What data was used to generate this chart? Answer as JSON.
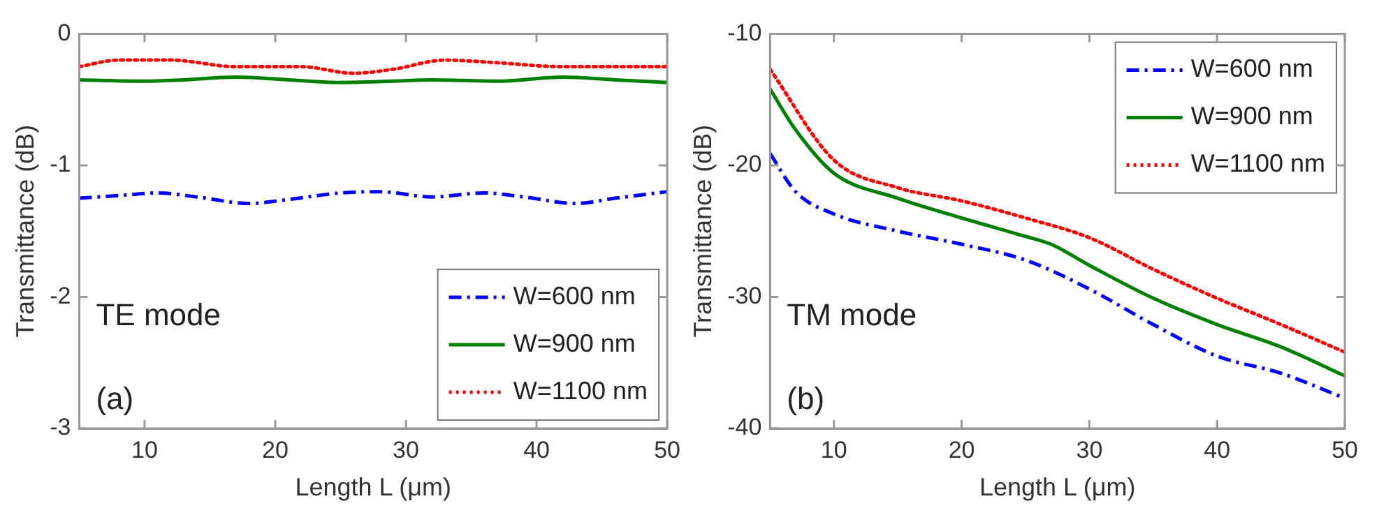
{
  "chart_data": [
    {
      "type": "line",
      "xlabel": "Length L (μm)",
      "ylabel": "Transmittance (dB)",
      "xlim": [
        5,
        50
      ],
      "xticks": [
        10,
        20,
        30,
        40,
        50
      ],
      "ylim": [
        -3,
        0
      ],
      "yticks": [
        -3,
        -2,
        -1,
        0
      ],
      "grid": false,
      "legend": "bottom right",
      "marker": "none",
      "annotations": [
        "TE mode",
        "(a)"
      ],
      "series": [
        {
          "name": "W=600 nm",
          "color": "#0000ff",
          "line_style": "dashed",
          "x": [
            5,
            8,
            11,
            14,
            18,
            21,
            25,
            28,
            32,
            36,
            39,
            43,
            46,
            50
          ],
          "values": [
            -1.25,
            -1.23,
            -1.21,
            -1.24,
            -1.29,
            -1.26,
            -1.21,
            -1.2,
            -1.24,
            -1.21,
            -1.24,
            -1.29,
            -1.25,
            -1.2
          ]
        },
        {
          "name": "W=900 nm",
          "color": "#008000",
          "line_style": "solid",
          "x": [
            5,
            10,
            13,
            17,
            21,
            25,
            29,
            32,
            37,
            42,
            46,
            50
          ],
          "values": [
            -0.35,
            -0.36,
            -0.35,
            -0.33,
            -0.35,
            -0.37,
            -0.36,
            -0.35,
            -0.36,
            -0.33,
            -0.35,
            -0.37
          ]
        },
        {
          "name": "W=1100 nm",
          "color": "#ff0000",
          "line_style": "dotted",
          "x": [
            5,
            8,
            12,
            17,
            22,
            26,
            29,
            33,
            37,
            42,
            46,
            50
          ],
          "values": [
            -0.25,
            -0.2,
            -0.2,
            -0.25,
            -0.25,
            -0.3,
            -0.27,
            -0.2,
            -0.22,
            -0.25,
            -0.25,
            -0.25
          ]
        }
      ]
    },
    {
      "type": "line",
      "xlabel": "Length L (μm)",
      "ylabel": "Transmittance (dB)",
      "xlim": [
        5,
        50
      ],
      "xticks": [
        10,
        20,
        30,
        40,
        50
      ],
      "ylim": [
        -40,
        -10
      ],
      "yticks": [
        -40,
        -30,
        -20,
        -10
      ],
      "grid": false,
      "legend": "top right",
      "marker": "none",
      "annotations": [
        "TM mode",
        "(b)"
      ],
      "series": [
        {
          "name": "W=600 nm",
          "color": "#0000ff",
          "line_style": "dashed",
          "x": [
            5,
            7,
            10,
            15,
            20,
            25,
            30,
            35,
            40,
            45,
            50
          ],
          "values": [
            -19.1,
            -22,
            -23.7,
            -25,
            -26,
            -27.2,
            -29.4,
            -32.1,
            -34.5,
            -35.8,
            -37.7
          ]
        },
        {
          "name": "W=900 nm",
          "color": "#008000",
          "line_style": "solid",
          "x": [
            5,
            7,
            10,
            15,
            20,
            25,
            27,
            30,
            35,
            40,
            45,
            50
          ],
          "values": [
            -14.2,
            -17.3,
            -20.6,
            -22.5,
            -24,
            -25.4,
            -26,
            -27.6,
            -30.1,
            -32.1,
            -33.8,
            -36
          ]
        },
        {
          "name": "W=1100 nm",
          "color": "#ff0000",
          "line_style": "dotted",
          "x": [
            5,
            10,
            15,
            20,
            25,
            30,
            35,
            40,
            45,
            50
          ],
          "values": [
            -12.7,
            -19.6,
            -21.7,
            -22.7,
            -24,
            -25.5,
            -27.9,
            -30.1,
            -32.1,
            -34.2
          ]
        }
      ]
    }
  ]
}
